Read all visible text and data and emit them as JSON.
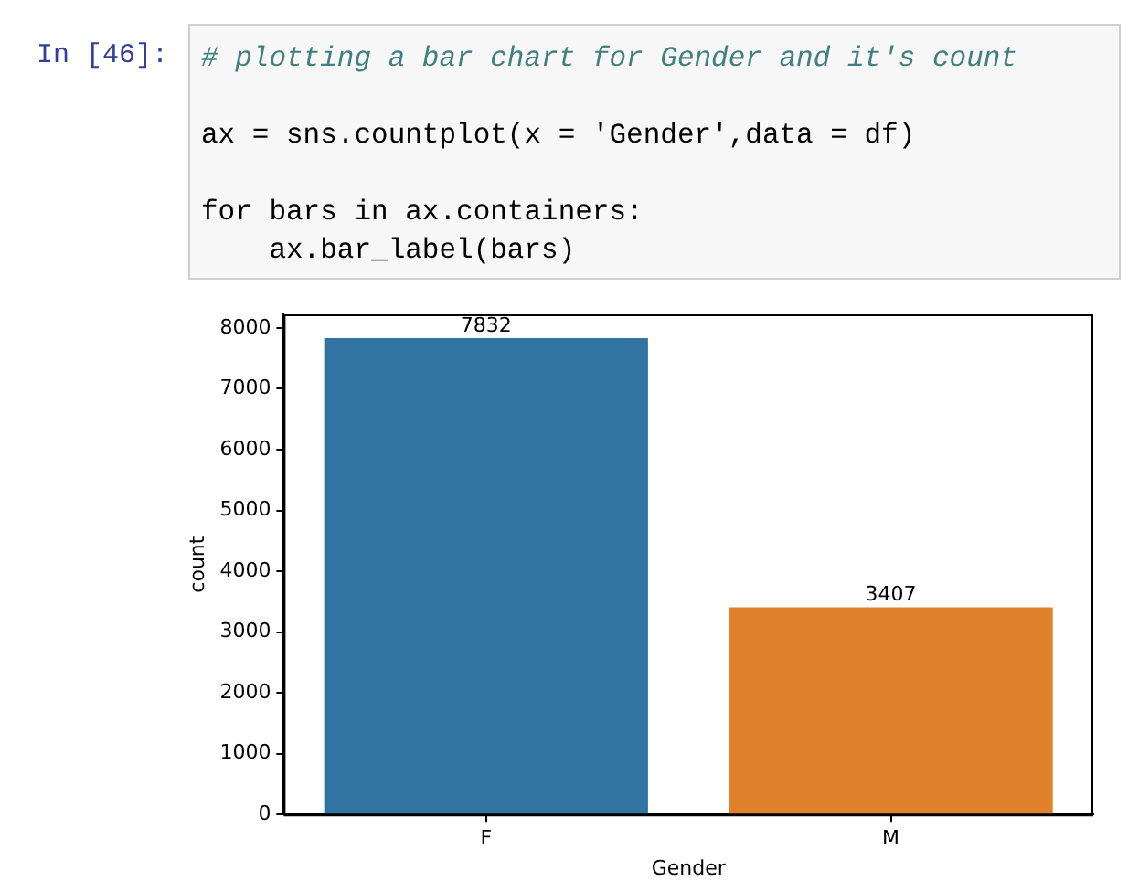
{
  "chart_data": {
    "type": "bar",
    "categories": [
      "F",
      "M"
    ],
    "values": [
      7832,
      3407
    ],
    "colors": [
      "#3274a1",
      "#e1812c"
    ],
    "xlabel": "Gender",
    "ylabel": "count",
    "ylim": [
      0,
      8224
    ],
    "yticks": [
      0,
      1000,
      2000,
      3000,
      4000,
      5000,
      6000,
      7000,
      8000
    ],
    "grid": false,
    "data_labels": true,
    "annotations": [
      "In [46]:",
      "# plotting a bar chart for Gender and it's count",
      "ax = sns.countplot(x = 'Gender',data = df)",
      "for bars in ax.containers:",
      "    ax.bar_label(bars)"
    ]
  }
}
